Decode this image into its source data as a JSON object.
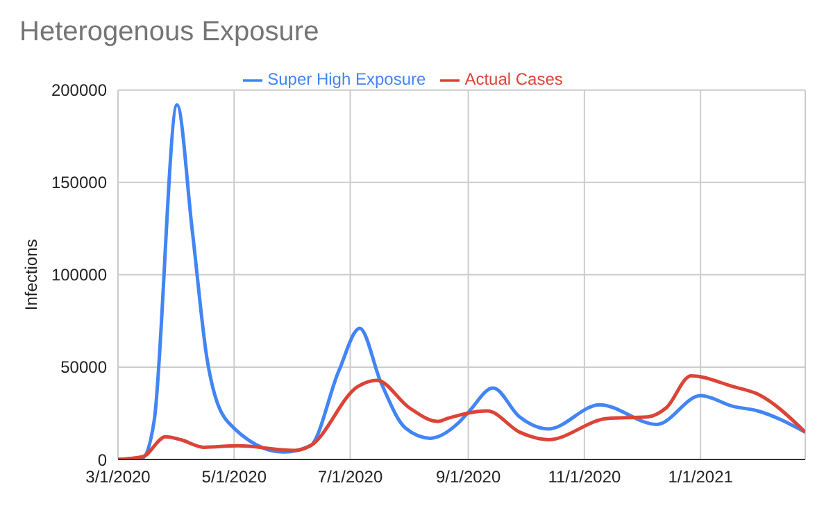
{
  "chart_data": {
    "type": "line",
    "title": "Heterogenous Exposure",
    "ylabel": "Infections",
    "xlim": [
      "2020-03-01",
      "2021-02-25"
    ],
    "xticks": [
      {
        "value": "2020-03-01",
        "label": "3/1/2020"
      },
      {
        "value": "2020-05-01",
        "label": "5/1/2020"
      },
      {
        "value": "2020-07-01",
        "label": "7/1/2020"
      },
      {
        "value": "2020-09-01",
        "label": "9/1/2020"
      },
      {
        "value": "2020-11-01",
        "label": "11/1/2020"
      },
      {
        "value": "2021-01-01",
        "label": "1/1/2021"
      }
    ],
    "ylim": [
      0,
      200000
    ],
    "yticks": [
      0,
      50000,
      100000,
      150000,
      200000
    ],
    "grid": true,
    "legend": "top",
    "marker": "none",
    "line_style": "solid",
    "series": [
      {
        "name": "Super High Exposure",
        "color": "#4285f4",
        "x": [
          "2020-03-01",
          "2020-03-14",
          "2020-03-20",
          "2020-04-01",
          "2020-04-09",
          "2020-04-17",
          "2020-04-28",
          "2020-05-27",
          "2020-06-10",
          "2020-06-25",
          "2020-07-06",
          "2020-07-17",
          "2020-07-30",
          "2020-08-12",
          "2020-08-27",
          "2020-09-01",
          "2020-09-14",
          "2020-09-28",
          "2020-10-13",
          "2020-11-09",
          "2020-12-09",
          "2021-01-01",
          "2021-01-18",
          "2021-01-31",
          "2021-02-25"
        ],
        "values": [
          0,
          1000,
          21000,
          192000,
          124000,
          53000,
          20000,
          4000,
          7400,
          48000,
          71000,
          42000,
          17000,
          11500,
          20000,
          25500,
          38700,
          23000,
          16500,
          29600,
          19000,
          34600,
          28800,
          26300,
          14800
        ]
      },
      {
        "name": "Actual Cases",
        "color": "#db4437",
        "x": [
          "2020-03-01",
          "2020-03-14",
          "2020-03-26",
          "2020-04-03",
          "2020-04-15",
          "2020-05-03",
          "2020-06-02",
          "2020-06-10",
          "2020-07-05",
          "2020-07-15",
          "2020-08-01",
          "2020-08-16",
          "2020-08-21",
          "2020-09-11",
          "2020-09-28",
          "2020-10-13",
          "2020-11-13",
          "2020-12-04",
          "2020-12-14",
          "2020-12-27",
          "2021-01-18",
          "2021-01-31",
          "2021-02-25"
        ],
        "values": [
          0,
          1500,
          12300,
          10700,
          6600,
          7400,
          4900,
          7400,
          39500,
          42800,
          28000,
          20600,
          22200,
          26300,
          14800,
          10700,
          22200,
          23000,
          28000,
          45300,
          39500,
          35400,
          14800
        ]
      }
    ]
  }
}
